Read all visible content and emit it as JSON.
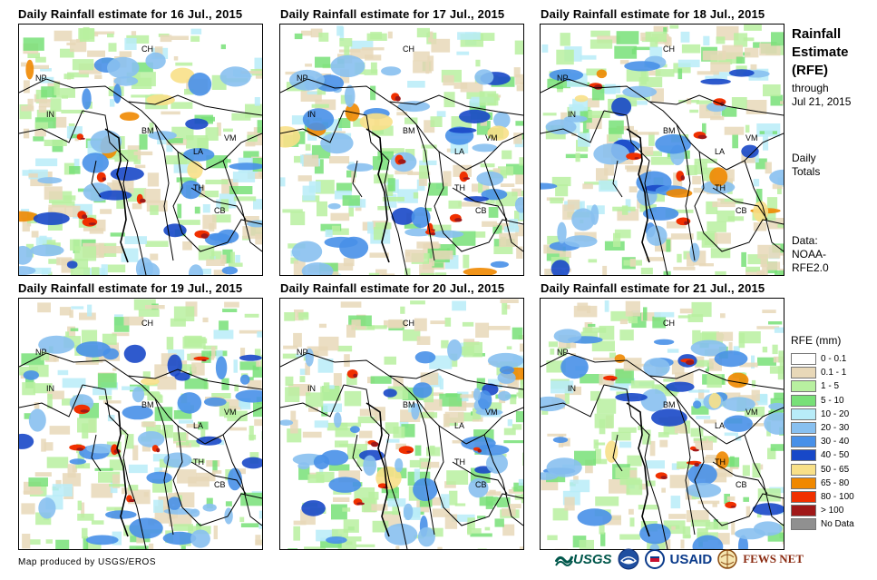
{
  "panels": [
    {
      "title": "Daily Rainfall estimate for 16 Jul., 2015"
    },
    {
      "title": "Daily Rainfall estimate for 17 Jul., 2015"
    },
    {
      "title": "Daily Rainfall estimate for 18 Jul., 2015"
    },
    {
      "title": "Daily Rainfall estimate for 19 Jul., 2015"
    },
    {
      "title": "Daily Rainfall estimate for 20 Jul., 2015"
    },
    {
      "title": "Daily Rainfall estimate for 21 Jul., 2015"
    }
  ],
  "country_labels": [
    "CH",
    "NP",
    "IN",
    "BM",
    "LA",
    "VM",
    "TH",
    "CB"
  ],
  "sidebar": {
    "title_line1": "Rainfall",
    "title_line2": "Estimate",
    "title_line3": "(RFE)",
    "through": "through",
    "date": "Jul 21, 2015",
    "daily": "Daily",
    "totals": "Totals",
    "data_label": "Data:",
    "source1": "NOAA-",
    "source2": "RFE2.0"
  },
  "legend": {
    "title": "RFE (mm)",
    "items": [
      {
        "label": "0 - 0.1",
        "color": "#ffffff"
      },
      {
        "label": "0.1 - 1",
        "color": "#e8d8b8"
      },
      {
        "label": "1 - 5",
        "color": "#b8f0a0"
      },
      {
        "label": "5 - 10",
        "color": "#78e078"
      },
      {
        "label": "10 - 20",
        "color": "#b8ecf8"
      },
      {
        "label": "20 - 30",
        "color": "#88c0f0"
      },
      {
        "label": "30 - 40",
        "color": "#4890e8"
      },
      {
        "label": "40 - 50",
        "color": "#1848c8"
      },
      {
        "label": "50 - 65",
        "color": "#f8e088"
      },
      {
        "label": "65 - 80",
        "color": "#f08800"
      },
      {
        "label": "80 - 100",
        "color": "#f03000"
      },
      {
        "label": "> 100",
        "color": "#a01818"
      },
      {
        "label": "No Data",
        "color": "#909090"
      }
    ]
  },
  "footer": {
    "credit": "Map produced by USGS/EROS"
  },
  "logos": {
    "usgs": "USGS",
    "usaid": "USAID",
    "fewsnet": "FEWS NET"
  }
}
